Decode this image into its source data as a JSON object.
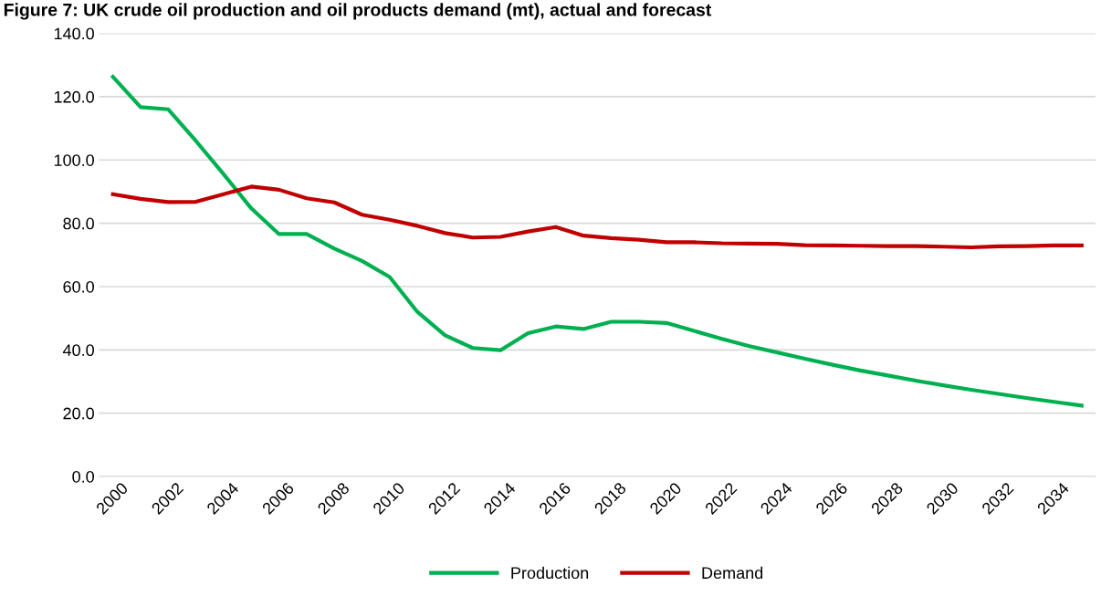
{
  "chart_data": {
    "type": "line",
    "title": "Figure 7: UK crude oil production and oil products demand (mt), actual and forecast",
    "x": [
      2000,
      2001,
      2002,
      2003,
      2004,
      2005,
      2006,
      2007,
      2008,
      2009,
      2010,
      2011,
      2012,
      2013,
      2014,
      2015,
      2016,
      2017,
      2018,
      2019,
      2020,
      2021,
      2022,
      2023,
      2024,
      2025,
      2026,
      2027,
      2028,
      2029,
      2030,
      2031,
      2032,
      2033,
      2034,
      2035
    ],
    "series": [
      {
        "name": "Production",
        "color": "#00b050",
        "values": [
          126.3,
          116.7,
          116.0,
          106.0,
          95.5,
          84.7,
          76.6,
          76.6,
          72.0,
          68.1,
          63.0,
          52.0,
          44.6,
          40.6,
          39.9,
          45.3,
          47.4,
          46.6,
          48.9,
          48.9,
          48.5,
          46.0,
          43.5,
          41.2,
          39.2,
          37.2,
          35.3,
          33.5,
          31.9,
          30.3,
          28.8,
          27.4,
          26.1,
          24.8,
          23.6,
          22.4
        ]
      },
      {
        "name": "Demand",
        "color": "#c00000",
        "values": [
          89.2,
          87.7,
          86.7,
          86.8,
          89.2,
          91.6,
          90.6,
          87.9,
          86.6,
          82.7,
          81.1,
          79.2,
          76.9,
          75.5,
          75.7,
          77.4,
          78.8,
          76.1,
          75.3,
          74.8,
          74.0,
          74.0,
          73.7,
          73.6,
          73.5,
          73.1,
          73.0,
          72.9,
          72.8,
          72.8,
          72.6,
          72.4,
          72.7,
          72.8,
          73.0,
          73.0
        ]
      }
    ],
    "xlim": [
      1999.5,
      2035.5
    ],
    "xticks": [
      2000,
      2002,
      2004,
      2006,
      2008,
      2010,
      2012,
      2014,
      2016,
      2018,
      2020,
      2022,
      2024,
      2026,
      2028,
      2030,
      2032,
      2034
    ],
    "ylim": [
      0,
      140
    ],
    "yticks": [
      {
        "value": 0,
        "label": "0.0"
      },
      {
        "value": 20,
        "label": "20.0"
      },
      {
        "value": 40,
        "label": "40.0"
      },
      {
        "value": 60,
        "label": "60.0"
      },
      {
        "value": 80,
        "label": "80.0"
      },
      {
        "value": 100,
        "label": "100.0"
      },
      {
        "value": 120,
        "label": "120.0"
      },
      {
        "value": 140,
        "label": "140.0"
      }
    ],
    "grid": "y",
    "legend": "bottom",
    "marker": "none",
    "line_style": "solid"
  }
}
